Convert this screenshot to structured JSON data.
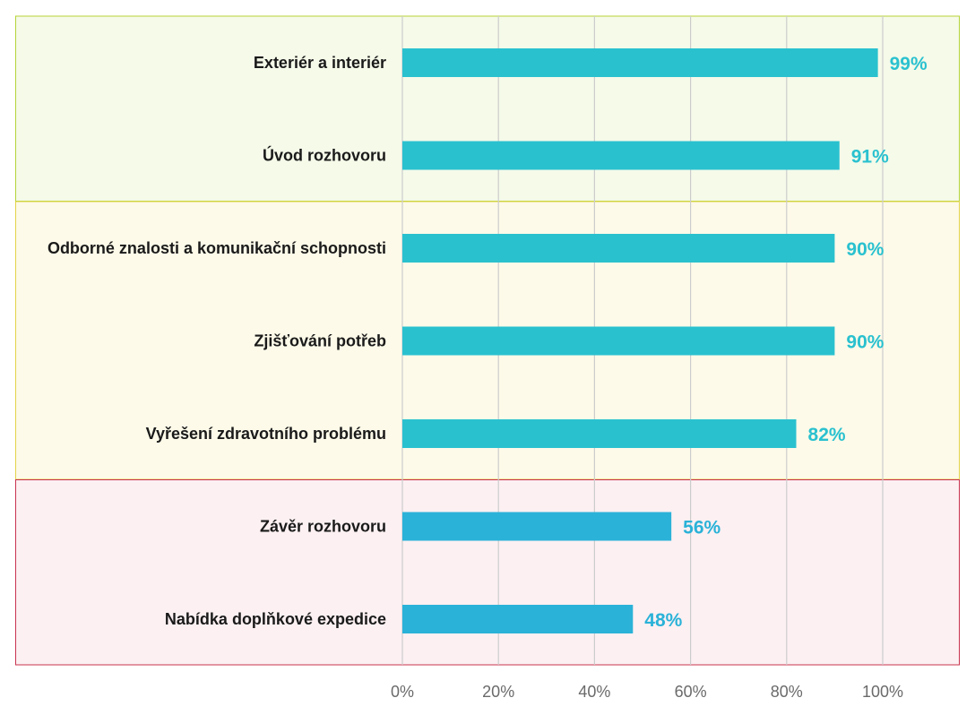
{
  "chart_data": {
    "type": "bar",
    "orientation": "horizontal",
    "categories": [
      "Exteriér a interiér",
      "Úvod rozhovoru",
      "Odborné znalosti a komunikační schopnosti",
      "Zjišťování potřeb",
      "Vyřešení zdravotního problému",
      "Závěr rozhovoru",
      "Nabídka doplňkové expedice"
    ],
    "values": [
      99,
      91,
      90,
      90,
      82,
      56,
      48
    ],
    "value_labels": [
      "99%",
      "91%",
      "90%",
      "90%",
      "82%",
      "56%",
      "48%"
    ],
    "xlim": [
      0,
      100
    ],
    "x_ticks": [
      0,
      20,
      40,
      60,
      80,
      100
    ],
    "x_tick_labels": [
      "0%",
      "20%",
      "40%",
      "60%",
      "80%",
      "100%"
    ],
    "grid": "vertical",
    "groups": [
      {
        "categories": [
          0,
          1
        ],
        "fill": "#f5fae9",
        "border": "#b5d337"
      },
      {
        "categories": [
          2,
          3,
          4
        ],
        "fill": "#fdfae9",
        "border": "#e3d34a"
      },
      {
        "categories": [
          5,
          6
        ],
        "fill": "#fcf0f2",
        "border": "#c8324e"
      }
    ],
    "colors": {
      "bar": "#2ac1cf",
      "bar_low": "#2ab2d8",
      "value_label": "#2ac1cf",
      "value_label_low": "#2ab2d8",
      "grid": "#cccccc"
    }
  }
}
